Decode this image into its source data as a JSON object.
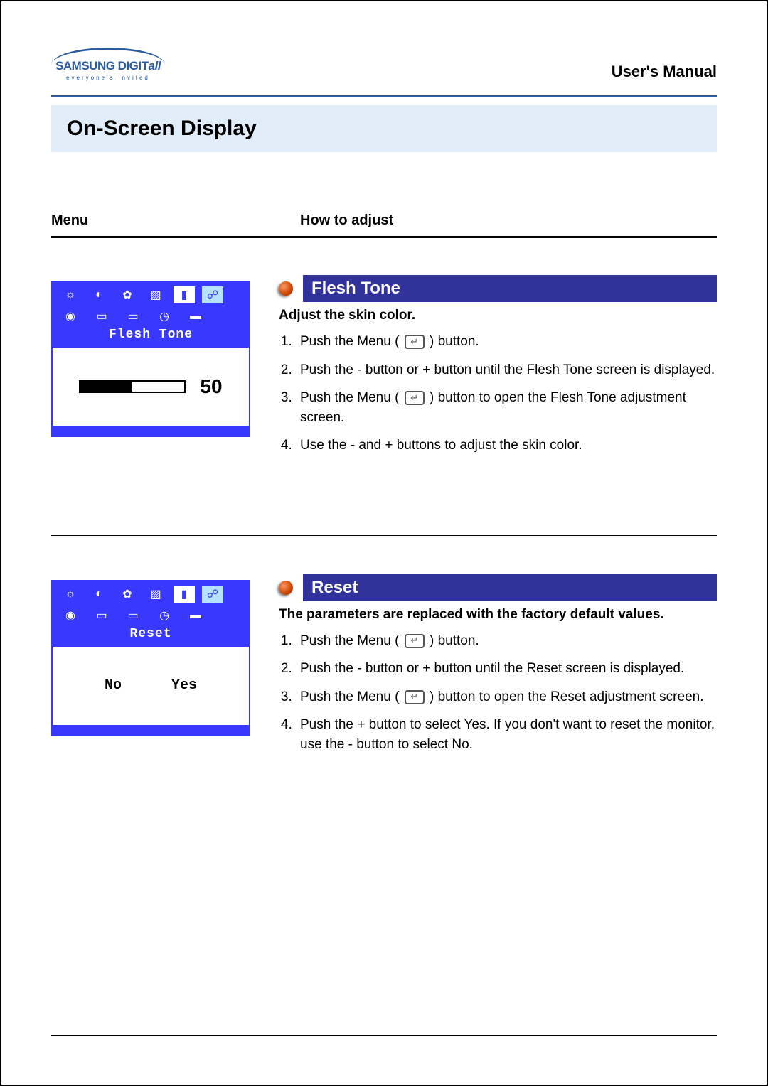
{
  "header": {
    "brand_main": "SAMSUNG DIGIT",
    "brand_suffix": "all",
    "tagline": "everyone's invited",
    "manual_title": "User's Manual"
  },
  "title_bar": "On-Screen Display",
  "columns": {
    "left": "Menu",
    "right": "How to adjust"
  },
  "section1": {
    "osd_label": "Flesh Tone",
    "osd_value": "50",
    "slider_fill_percent": 50,
    "title": "Flesh Tone",
    "description": "Adjust the skin color.",
    "title_bg": "#32329b",
    "bullet_color": "#cc4400",
    "steps": [
      "Push the Menu ( [btn] ) button.",
      "Push the - button or + button until the Flesh Tone screen is displayed.",
      "Push the Menu ( [btn] ) button to open the Flesh Tone adjustment screen.",
      "Use the - and + buttons to adjust the skin color."
    ]
  },
  "section2": {
    "osd_label": "Reset",
    "osd_opt_no": "No",
    "osd_opt_yes": "Yes",
    "title": "Reset",
    "description": "The parameters are replaced with the factory default values.",
    "title_bg": "#32329b",
    "bullet_color": "#cc4400",
    "steps": [
      "Push the Menu ( [btn] ) button.",
      "Push the - button or + button until the Reset screen is displayed.",
      "Push the Menu ( [btn] ) button to open the Reset adjustment screen.",
      "Push the + button to select Yes. If you don't want to reset the monitor, use the - button to select No."
    ]
  },
  "osd_colors": {
    "frame": "#3838ff",
    "bg": "#ffffff",
    "icon_selected_bg": "#ffffff",
    "icon_last_bg": "#b6e0ff"
  }
}
